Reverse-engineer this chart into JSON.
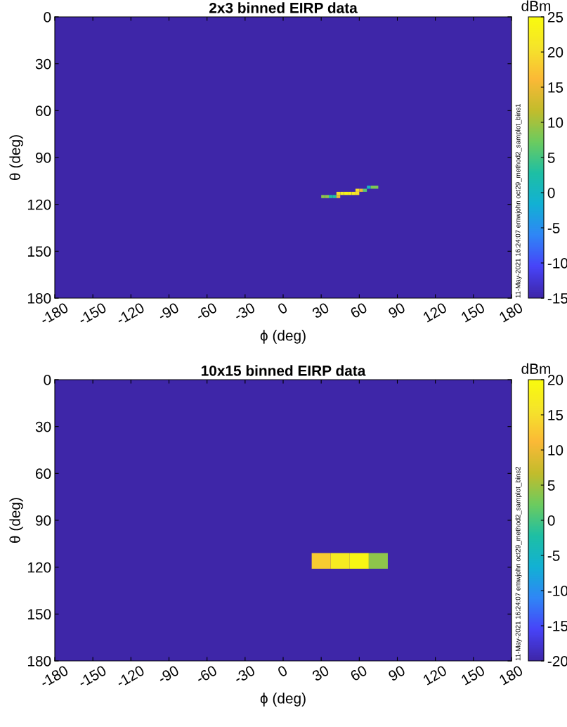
{
  "chart_data": [
    {
      "type": "scatter",
      "title": "2x3 binned EIRP data",
      "xlabel": "ϕ (deg)",
      "ylabel": "θ (deg)",
      "clabel": "dBm",
      "marker": "square",
      "x": [
        31.5,
        34.5,
        37.5,
        40.5,
        43.5,
        43.5,
        46.5,
        49.5,
        52.5,
        55.5,
        58.5,
        58.5,
        61.5,
        64.5,
        67.5,
        70.5,
        73.5
      ],
      "values": [
        115,
        115,
        115,
        115,
        115,
        113,
        113,
        113,
        113,
        113,
        113,
        111,
        111,
        111,
        109,
        109,
        109
      ],
      "cvalues": [
        9,
        9,
        3,
        3,
        15,
        20,
        22,
        23,
        23,
        22,
        20,
        20,
        15,
        6,
        0,
        8,
        8
      ],
      "xlim": [
        -180,
        180
      ],
      "xticks": [
        -180,
        -150,
        -120,
        -90,
        -60,
        -30,
        0,
        30,
        60,
        90,
        120,
        150,
        180
      ],
      "ylim": [
        180,
        0
      ],
      "yticks": [
        0,
        30,
        60,
        90,
        120,
        150,
        180
      ],
      "clim": [
        -15,
        25
      ],
      "cticks": [
        -15,
        -10,
        -5,
        0,
        5,
        10,
        15,
        20,
        25
      ],
      "annotations": [
        "11-May-2021 16:24:07 emwjohn oct29_method2_samplot_bins1"
      ]
    },
    {
      "type": "scatter",
      "title": "10x15 binned EIRP data",
      "xlabel": "ϕ (deg)",
      "ylabel": "θ (deg)",
      "clabel": "dBm",
      "marker": "square",
      "x": [
        30,
        45,
        60,
        75
      ],
      "values": [
        116,
        116,
        116,
        116
      ],
      "cvalues": [
        13,
        17,
        19,
        4
      ],
      "xlim": [
        -180,
        180
      ],
      "xticks": [
        -180,
        -150,
        -120,
        -90,
        -60,
        -30,
        0,
        30,
        60,
        90,
        120,
        150,
        180
      ],
      "ylim": [
        180,
        0
      ],
      "yticks": [
        0,
        30,
        60,
        90,
        120,
        150,
        180
      ],
      "clim": [
        -20,
        20
      ],
      "cticks": [
        -20,
        -15,
        -10,
        -5,
        0,
        5,
        10,
        15,
        20
      ],
      "annotations": [
        "11-May-2021 16:24:07 emwjohn oct29_method2_samplot_bins2"
      ]
    }
  ]
}
